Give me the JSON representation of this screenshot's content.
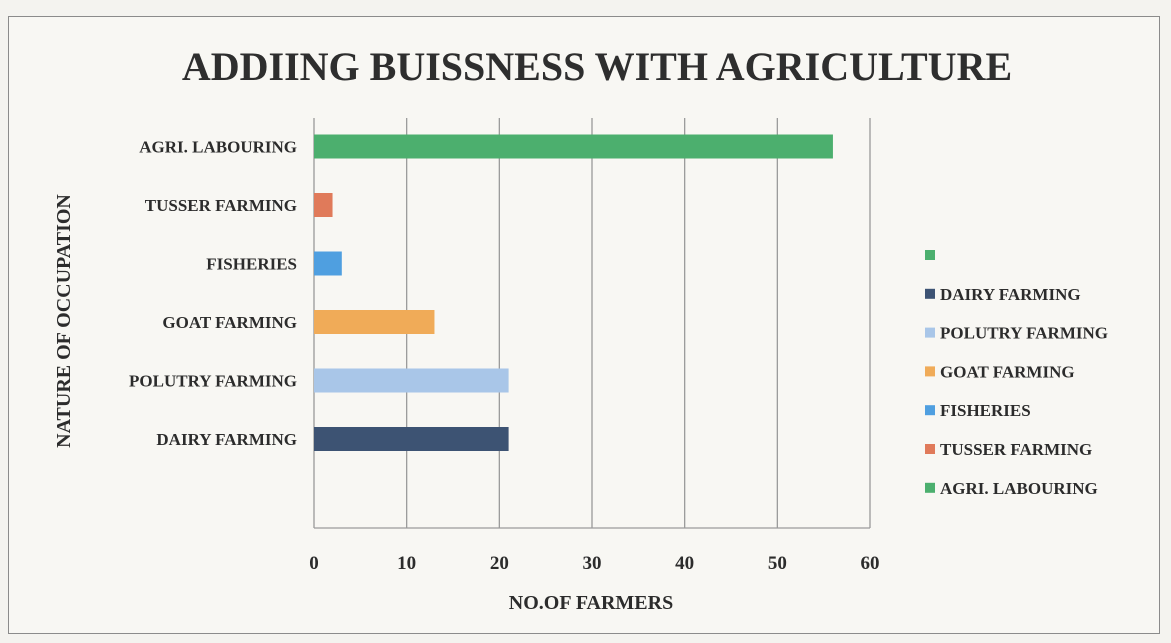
{
  "chart_data": {
    "type": "bar",
    "orientation": "horizontal",
    "title": "ADDIING BUISSNESS WITH AGRICULTURE",
    "xlabel": "NO.OF FARMERS",
    "ylabel": "NATURE OF OCCUPATION",
    "xlim": [
      0,
      60
    ],
    "xticks": [
      0,
      10,
      20,
      30,
      40,
      50,
      60
    ],
    "grid": "vertical",
    "legend_position": "right",
    "categories": [
      "DAIRY FARMING",
      "POLUTRY FARMING",
      "GOAT FARMING",
      "FISHERIES",
      "TUSSER FARMING",
      "AGRI. LABOURING"
    ],
    "values": [
      21,
      21,
      13,
      3,
      2,
      56
    ],
    "colors": [
      "#3d5373",
      "#a9c6e8",
      "#f0ab58",
      "#4f9fe0",
      "#e07a5a",
      "#4caf6e"
    ],
    "legend": [
      {
        "label": "",
        "color": "#4caf6e"
      },
      {
        "label": "DAIRY FARMING",
        "color": "#3d5373"
      },
      {
        "label": "POLUTRY FARMING",
        "color": "#a9c6e8"
      },
      {
        "label": "GOAT FARMING",
        "color": "#f0ab58"
      },
      {
        "label": "FISHERIES",
        "color": "#4f9fe0"
      },
      {
        "label": "TUSSER FARMING",
        "color": "#e07a5a"
      },
      {
        "label": "AGRI. LABOURING",
        "color": "#4caf6e"
      }
    ]
  }
}
